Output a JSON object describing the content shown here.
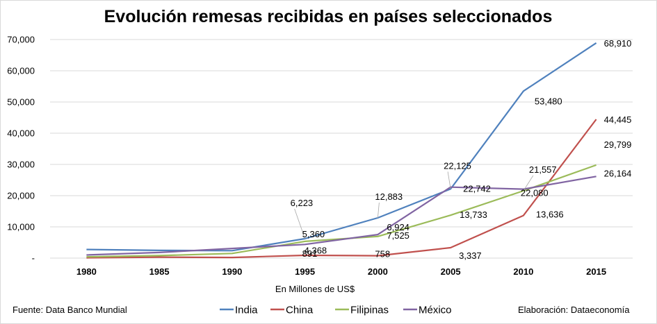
{
  "chart_data": {
    "type": "line",
    "title": "Evolución remesas recibidas en países seleccionados",
    "xlabel": "En Millones de US$",
    "ylabel": "",
    "x": [
      "1980",
      "1985",
      "1990",
      "1995",
      "2000",
      "2005",
      "2010",
      "2015"
    ],
    "ylim": [
      0,
      70000
    ],
    "yticks": [
      {
        "value": 0,
        "label": "-"
      },
      {
        "value": 10000,
        "label": "10,000"
      },
      {
        "value": 20000,
        "label": "20,000"
      },
      {
        "value": 30000,
        "label": "30,000"
      },
      {
        "value": 40000,
        "label": "40,000"
      },
      {
        "value": 50000,
        "label": "50,000"
      },
      {
        "value": 60000,
        "label": "60,000"
      },
      {
        "value": 70000,
        "label": "70,000"
      }
    ],
    "grid": true,
    "legend_position": "bottom",
    "series": [
      {
        "name": "India",
        "color": "#4f81bd",
        "values": [
          2757,
          2470,
          2380,
          6223,
          12883,
          22125,
          53480,
          68910
        ],
        "labels": {
          "3": "6,223",
          "4": "12,883",
          "5": "22,125",
          "6": "53,480",
          "7": "68,910"
        }
      },
      {
        "name": "China",
        "color": "#c0504d",
        "values": [
          100,
          300,
          200,
          891,
          758,
          3337,
          13636,
          44445
        ],
        "labels": {
          "3": "891",
          "4": "758",
          "5": "3,337",
          "6": "13,636",
          "7": "44,445"
        }
      },
      {
        "name": "Filipinas",
        "color": "#9bbb59",
        "values": [
          400,
          800,
          1500,
          5360,
          6924,
          13733,
          21557,
          29799
        ],
        "labels": {
          "3": "5,360",
          "4": "6,924",
          "5": "13,733",
          "6": "21,557",
          "7": "29,799"
        }
      },
      {
        "name": "México",
        "color": "#8064a2",
        "values": [
          1000,
          1800,
          3100,
          4368,
          7525,
          22742,
          22080,
          26164
        ],
        "labels": {
          "3": "4,368",
          "4": "7,525",
          "5": "22,742",
          "6": "22,080",
          "7": "26,164"
        }
      }
    ]
  },
  "footer": {
    "source": "Fuente: Data Banco Mundial",
    "credit": "Elaboración: Dataeconomía"
  }
}
